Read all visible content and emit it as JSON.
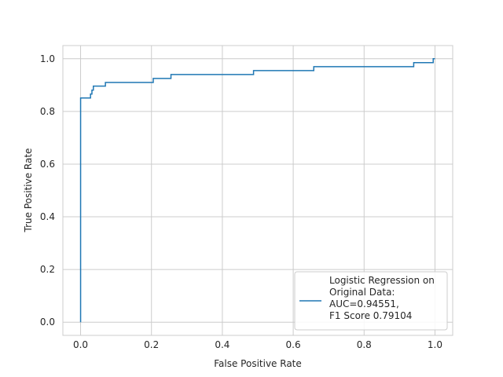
{
  "chart_data": {
    "type": "line",
    "title": "",
    "xlabel": "False Positive Rate",
    "ylabel": "True Positive Rate",
    "xlim": [
      -0.05,
      1.05
    ],
    "ylim": [
      -0.05,
      1.05
    ],
    "xticks": [
      "0.0",
      "0.2",
      "0.4",
      "0.6",
      "0.8",
      "1.0"
    ],
    "yticks": [
      "0.0",
      "0.2",
      "0.4",
      "0.6",
      "0.8",
      "1.0"
    ],
    "grid": true,
    "legend_position": "lower-right",
    "legend_lines": [
      "Logistic Regression on",
      "Original Data:",
      "AUC=0.94551,",
      "F1 Score 0.79104"
    ],
    "series": [
      {
        "color": "#1f77b4",
        "x": [
          0,
          0,
          0.028,
          0.028,
          0.032,
          0.032,
          0.036,
          0.036,
          0.07,
          0.07,
          0.205,
          0.205,
          0.255,
          0.255,
          0.488,
          0.488,
          0.658,
          0.658,
          0.94,
          0.94,
          0.995,
          0.995,
          1.0
        ],
        "y": [
          0,
          0.851,
          0.851,
          0.866,
          0.866,
          0.881,
          0.881,
          0.896,
          0.896,
          0.91,
          0.91,
          0.925,
          0.925,
          0.94,
          0.94,
          0.955,
          0.955,
          0.97,
          0.97,
          0.985,
          0.985,
          1.0,
          1.0
        ]
      }
    ]
  }
}
